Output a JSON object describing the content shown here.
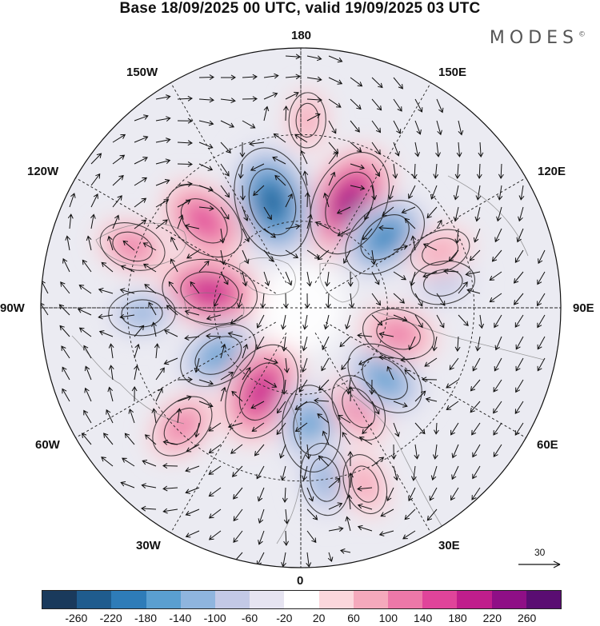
{
  "title": "Base 18/09/2025 00 UTC, valid 19/09/2025 03 UTC",
  "brand": "MODES",
  "brand_mark": "©",
  "lon_labels": {
    "n180": "180",
    "e150": "150E",
    "e120": "120E",
    "e90": "90E",
    "e60": "60E",
    "e30": "30E",
    "s0": "0",
    "w30": "30W",
    "w60": "60W",
    "w90": "90W",
    "w120": "120W",
    "w150": "150W"
  },
  "wind_scale": {
    "value": "30",
    "icon": "arrow-right-icon"
  },
  "colorbar": {
    "colors": [
      "#1a3a5c",
      "#1f5c8e",
      "#2e7cb8",
      "#5a9fd0",
      "#8fb5de",
      "#c3c9e6",
      "#e6e4f1",
      "#ffffff",
      "#fbd7dc",
      "#f5a9bc",
      "#ec78a8",
      "#e0449a",
      "#c01e8c",
      "#8f0f86",
      "#5a0d72"
    ],
    "ticks": [
      "-260",
      "-220",
      "-180",
      "-140",
      "-100",
      "-60",
      "-20",
      "20",
      "60",
      "100",
      "140",
      "180",
      "220",
      "260"
    ]
  },
  "anomalies": [
    {
      "lon": 155,
      "lat": 50,
      "value": 240
    },
    {
      "lon": -165,
      "lat": 52,
      "value": -250
    },
    {
      "lon": 130,
      "lat": 52,
      "value": -180
    },
    {
      "lon": -132,
      "lat": 45,
      "value": 170
    },
    {
      "lon": -110,
      "lat": 28,
      "value": 100
    },
    {
      "lon": -100,
      "lat": 58,
      "value": 200
    },
    {
      "lon": -88,
      "lat": 35,
      "value": -100
    },
    {
      "lon": -60,
      "lat": 57,
      "value": -150
    },
    {
      "lon": -25,
      "lat": 58,
      "value": 210
    },
    {
      "lon": -45,
      "lat": 32,
      "value": 110
    },
    {
      "lon": 5,
      "lat": 48,
      "value": -170
    },
    {
      "lon": 8,
      "lat": 30,
      "value": -120
    },
    {
      "lon": 30,
      "lat": 50,
      "value": 110
    },
    {
      "lon": 50,
      "lat": 52,
      "value": -160
    },
    {
      "lon": 75,
      "lat": 55,
      "value": 120
    },
    {
      "lon": 100,
      "lat": 40,
      "value": -90
    },
    {
      "lon": 112,
      "lat": 38,
      "value": 80
    },
    {
      "lon": 178,
      "lat": 25,
      "value": 60
    },
    {
      "lon": 20,
      "lat": 25,
      "value": 80
    }
  ]
}
